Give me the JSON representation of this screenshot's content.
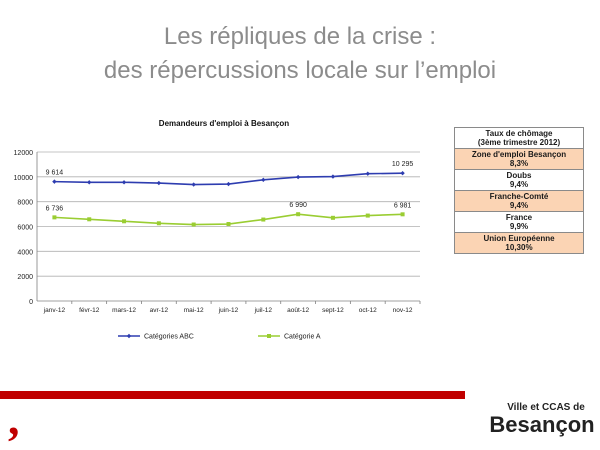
{
  "slide": {
    "title_line1": "Les répliques de la crise :",
    "title_line2": "des répercussions locale sur l’emploi"
  },
  "chart_data": {
    "type": "line",
    "title": "Demandeurs d'emploi à Besançon",
    "categories": [
      "janv-12",
      "févr-12",
      "mars-12",
      "avr-12",
      "mai-12",
      "juin-12",
      "juil-12",
      "août-12",
      "sept-12",
      "oct-12",
      "nov-12"
    ],
    "series": [
      {
        "name": "Catégories ABC",
        "color": "#2e3db0",
        "values": [
          9614,
          9560,
          9560,
          9500,
          9380,
          9420,
          9760,
          9980,
          10020,
          10250,
          10295
        ]
      },
      {
        "name": "Catégorie A",
        "color": "#9acd32",
        "values": [
          6736,
          6580,
          6420,
          6260,
          6160,
          6200,
          6560,
          6990,
          6700,
          6880,
          6981
        ]
      }
    ],
    "data_labels": [
      {
        "series": 0,
        "index": 0,
        "text": "9 614"
      },
      {
        "series": 0,
        "index": 10,
        "text": "10 295"
      },
      {
        "series": 1,
        "index": 0,
        "text": "6 736"
      },
      {
        "series": 1,
        "index": 7,
        "text": "6 990"
      },
      {
        "series": 1,
        "index": 10,
        "text": "6 981"
      }
    ],
    "yticks": [
      0,
      2000,
      4000,
      6000,
      8000,
      10000,
      12000
    ],
    "ylim": [
      0,
      12000
    ],
    "grid": true,
    "legend": "bottom"
  },
  "rates_table": {
    "header_line1": "Taux de chômage",
    "header_line2": "(3ème trimestre 2012)",
    "rows": [
      {
        "label": "Zone d'emploi Besançon",
        "value": "8,3%",
        "highlight": true
      },
      {
        "label": "Doubs",
        "value": "9,4%",
        "highlight": false
      },
      {
        "label": "Franche-Comté",
        "value": "9,4%",
        "highlight": true
      },
      {
        "label": "France",
        "value": "9,9%",
        "highlight": false
      },
      {
        "label": "Union Européenne",
        "value": "10,30%",
        "highlight": true
      }
    ]
  },
  "footer": {
    "accent_color": "#c00000",
    "comma_glyph": ",",
    "logo_line1": "Ville et CCAS de",
    "logo_line2": "Besançon"
  }
}
